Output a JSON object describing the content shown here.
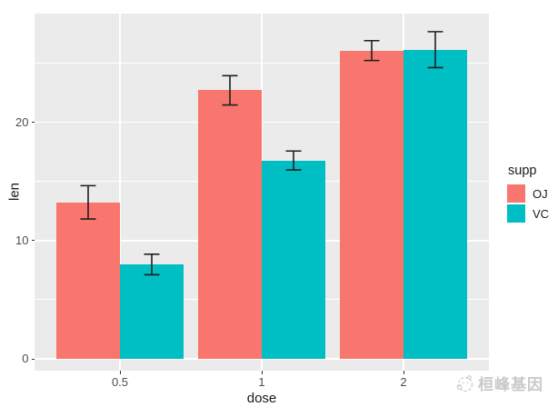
{
  "chart_data": {
    "type": "bar",
    "bar_mode": "dodge",
    "title": "",
    "xlabel": "dose",
    "ylabel": "len",
    "categories": [
      "0.5",
      "1",
      "2"
    ],
    "series": [
      {
        "name": "OJ",
        "color": "#F8766D",
        "values": [
          13.23,
          22.7,
          26.06
        ],
        "error_low": [
          11.82,
          21.46,
          25.22
        ],
        "error_high": [
          14.64,
          23.94,
          26.9
        ]
      },
      {
        "name": "VC",
        "color": "#00BFC4",
        "values": [
          7.98,
          16.77,
          26.14
        ],
        "error_low": [
          7.11,
          15.97,
          24.62
        ],
        "error_high": [
          8.85,
          17.57,
          27.66
        ]
      }
    ],
    "y_major_ticks": [
      0,
      10,
      20
    ],
    "y_minor_ticks": [
      5,
      15,
      25
    ],
    "ylim": [
      -1.0,
      29.2
    ],
    "grid": "white major and minor gridlines on gray panel",
    "legend_title": "supp",
    "legend_position": "right",
    "error_bars": "vertical with caps"
  },
  "axes": {
    "x_title": "dose",
    "y_title": "len",
    "x_tick_labels": [
      "0.5",
      "1",
      "2"
    ],
    "y_tick_labels": [
      "0",
      "10",
      "20"
    ]
  },
  "legend": {
    "title": "supp",
    "items": [
      {
        "label": "OJ",
        "color": "#F8766D"
      },
      {
        "label": "VC",
        "color": "#00BFC4"
      }
    ]
  },
  "watermark": {
    "text": "桓峰基因"
  },
  "colors": {
    "figure_background": "#FFFFFF",
    "panel_background": "#EBEBEB",
    "gridline": "#FFFFFF",
    "series_oj": "#F8766D",
    "series_vc": "#00BFC4",
    "errorbar": "#1F1F1F",
    "tick_label": "#4D4D4D",
    "axis_title": "#1A1A1A",
    "watermark": "#C9C9C9"
  }
}
